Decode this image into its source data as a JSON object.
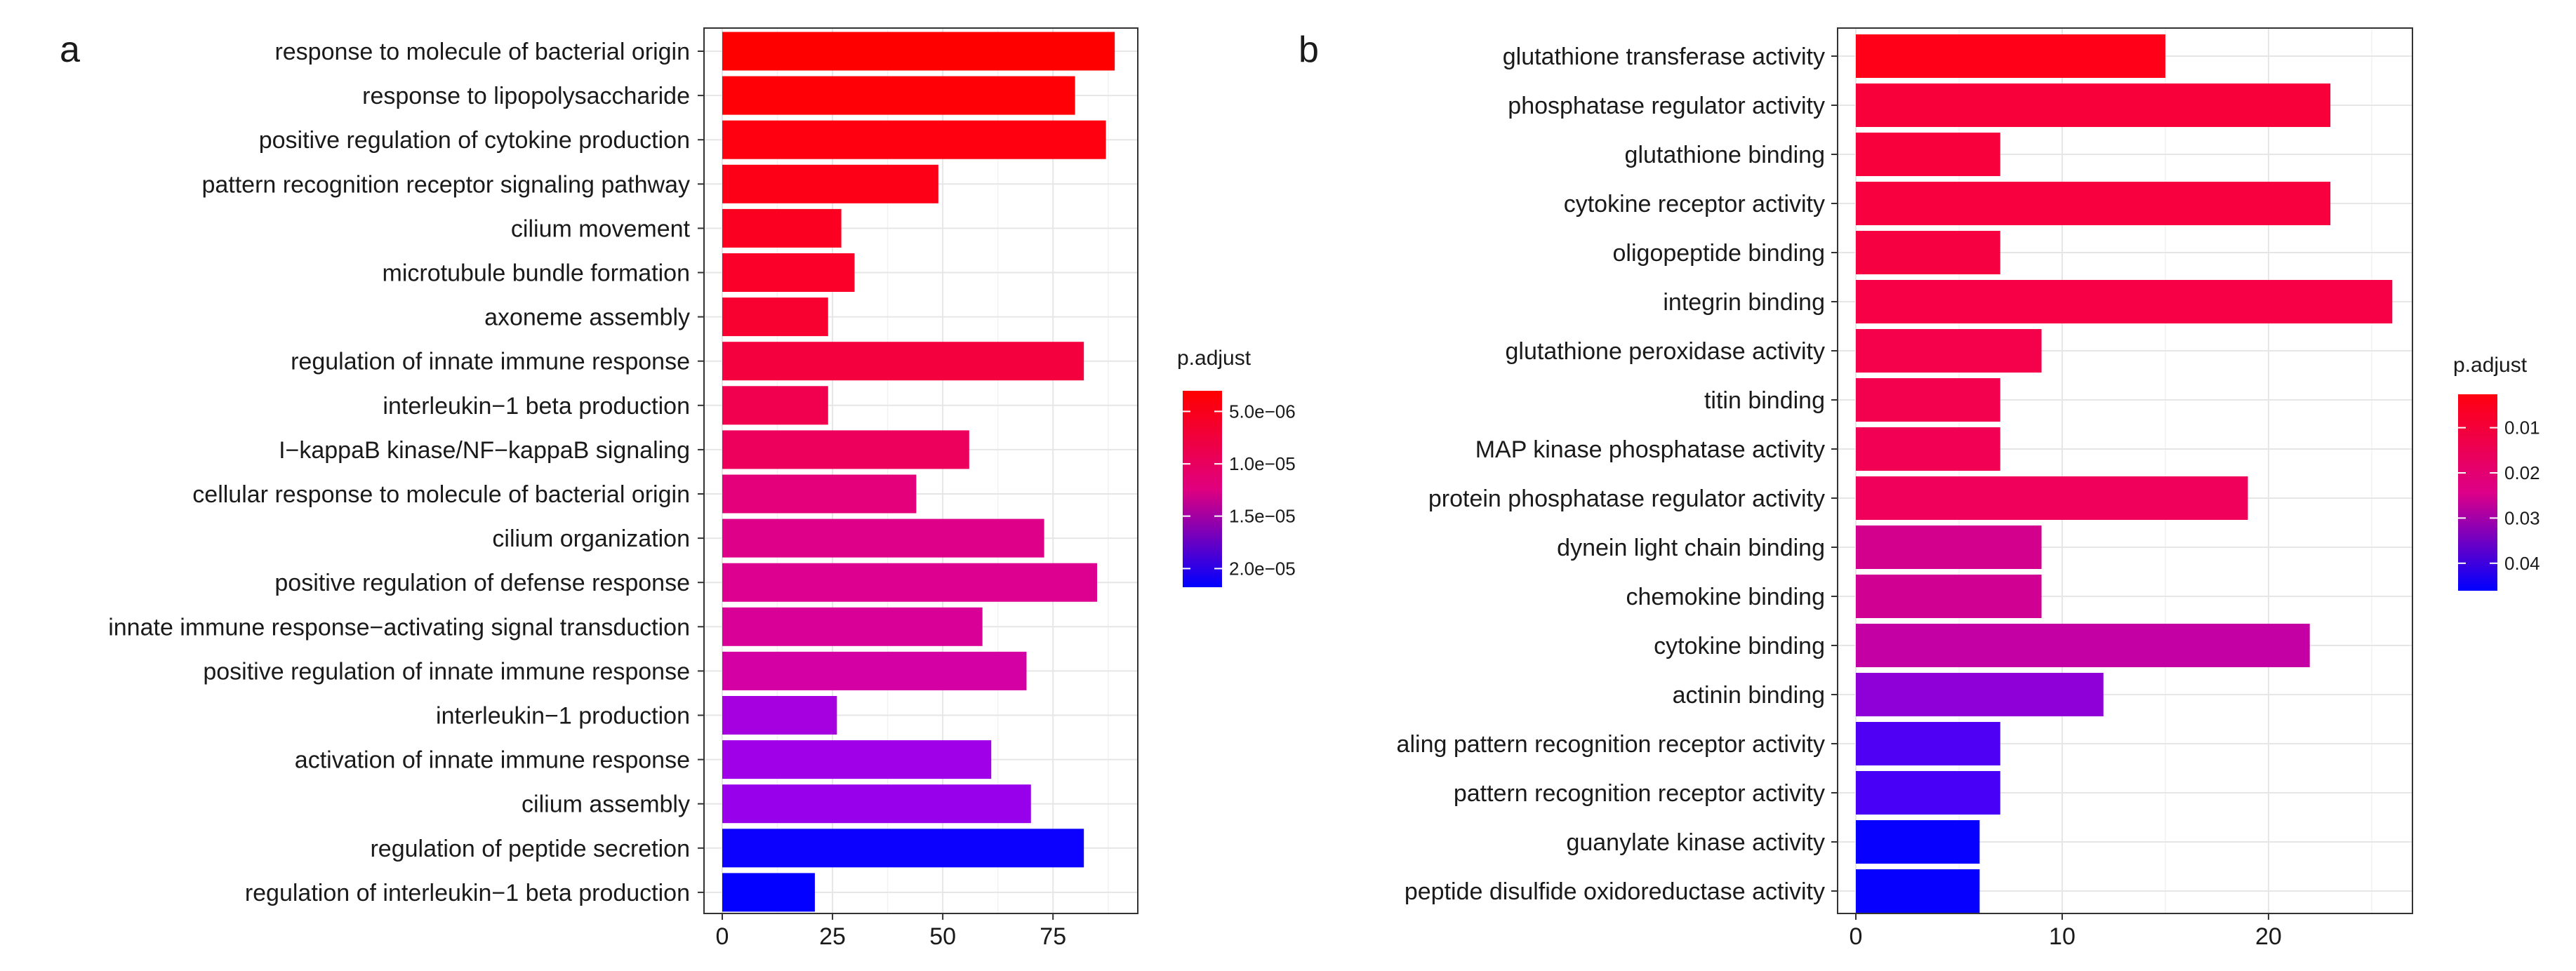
{
  "chart_data": [
    {
      "type": "bar",
      "orientation": "horizontal",
      "panel": "a",
      "xlabel": "",
      "ylabel": "",
      "xlim": [
        0,
        92
      ],
      "xticks": [
        0,
        25,
        50,
        75
      ],
      "grid": true,
      "categories": [
        "response to molecule of bacterial origin",
        "response to lipopolysaccharide",
        "positive regulation of cytokine production",
        "pattern recognition receptor signaling pathway",
        "cilium movement",
        "microtubule bundle formation",
        "axoneme assembly",
        "regulation of innate immune response",
        "interleukin−1 beta production",
        "I−kappaB kinase/NF−kappaB signaling",
        "cellular response to molecule of bacterial origin",
        "cilium organization",
        "positive regulation of defense response",
        "innate immune response−activating signal transduction",
        "positive regulation of innate immune response",
        "interleukin−1 production",
        "activation of innate immune response",
        "cilium assembly",
        "regulation of peptide secretion",
        "regulation of interleukin−1 beta production"
      ],
      "values": [
        89,
        80,
        87,
        49,
        27,
        30,
        24,
        82,
        24,
        56,
        44,
        73,
        85,
        59,
        69,
        26,
        61,
        70,
        82,
        21
      ],
      "colors": [
        "#ff0000",
        "#ff0007",
        "#ff0010",
        "#fd0018",
        "#fc0022",
        "#fb0028",
        "#f8002f",
        "#f5003f",
        "#f0004f",
        "#ec005c",
        "#e3007a",
        "#df0089",
        "#dd0090",
        "#d90098",
        "#d500a4",
        "#a700e0",
        "#9f00e8",
        "#9800ec",
        "#0c00fe",
        "#0400ff"
      ],
      "legend": {
        "title": "p.adjust",
        "ticks": [
          "5.0e−06",
          "1.0e−05",
          "1.5e−05",
          "2.0e−05"
        ],
        "position": "right"
      }
    },
    {
      "type": "bar",
      "orientation": "horizontal",
      "panel": "b",
      "xlabel": "",
      "ylabel": "",
      "xlim": [
        0,
        26.5
      ],
      "xticks": [
        0,
        10,
        20
      ],
      "grid": true,
      "categories": [
        "glutathione transferase activity",
        "phosphatase regulator activity",
        "glutathione binding",
        "cytokine receptor activity",
        "oligopeptide binding",
        "integrin binding",
        "glutathione peroxidase activity",
        "titin binding",
        "MAP kinase phosphatase activity",
        "protein phosphatase regulator activity",
        "dynein light chain binding",
        "chemokine binding",
        "cytokine binding",
        "actinin binding",
        "aling pattern recognition receptor activity",
        "pattern recognition receptor activity",
        "guanylate kinase activity",
        "peptide disulfide oxidoreductase activity"
      ],
      "values": [
        15,
        23,
        7,
        23,
        7,
        26,
        9,
        7,
        7,
        19,
        9,
        9,
        22,
        12,
        7,
        7,
        6,
        6
      ],
      "colors": [
        "#ff0018",
        "#f8003a",
        "#f8003c",
        "#f80040",
        "#f70042",
        "#f70045",
        "#f5004a",
        "#f3004f",
        "#f10053",
        "#f0005a",
        "#d2008c",
        "#cf0092",
        "#c400a4",
        "#8e00d7",
        "#4f00f4",
        "#4800f6",
        "#0800ff",
        "#0600ff"
      ],
      "legend": {
        "title": "p.adjust",
        "ticks": [
          "0.01",
          "0.02",
          "0.03",
          "0.04"
        ],
        "position": "right"
      }
    }
  ]
}
